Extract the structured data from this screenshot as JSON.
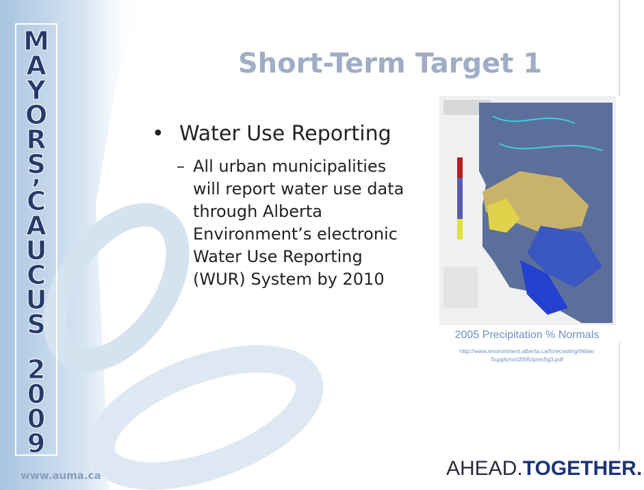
{
  "sidebar": {
    "words": [
      "MAYORS’",
      "CAUCUS",
      "2009"
    ]
  },
  "slide": {
    "title": "Short-Term Target 1",
    "bullet": "Water Use Reporting",
    "sub_bullet_lines": [
      "All urban municipalities",
      "will report water use data",
      "through Alberta",
      "Environment’s electronic",
      "Water Use Reporting",
      "(WUR) System by 2010"
    ]
  },
  "figure": {
    "caption": "2005 Precipitation % Normals",
    "source_lines": [
      "http://www.environment.alberta.ca/forecasting/Water",
      "Supply/oct2005/precfig3.pdf"
    ]
  },
  "footer": {
    "website": "www.auma.ca",
    "logo": [
      "AHEAD.",
      "TOGETHER."
    ]
  }
}
